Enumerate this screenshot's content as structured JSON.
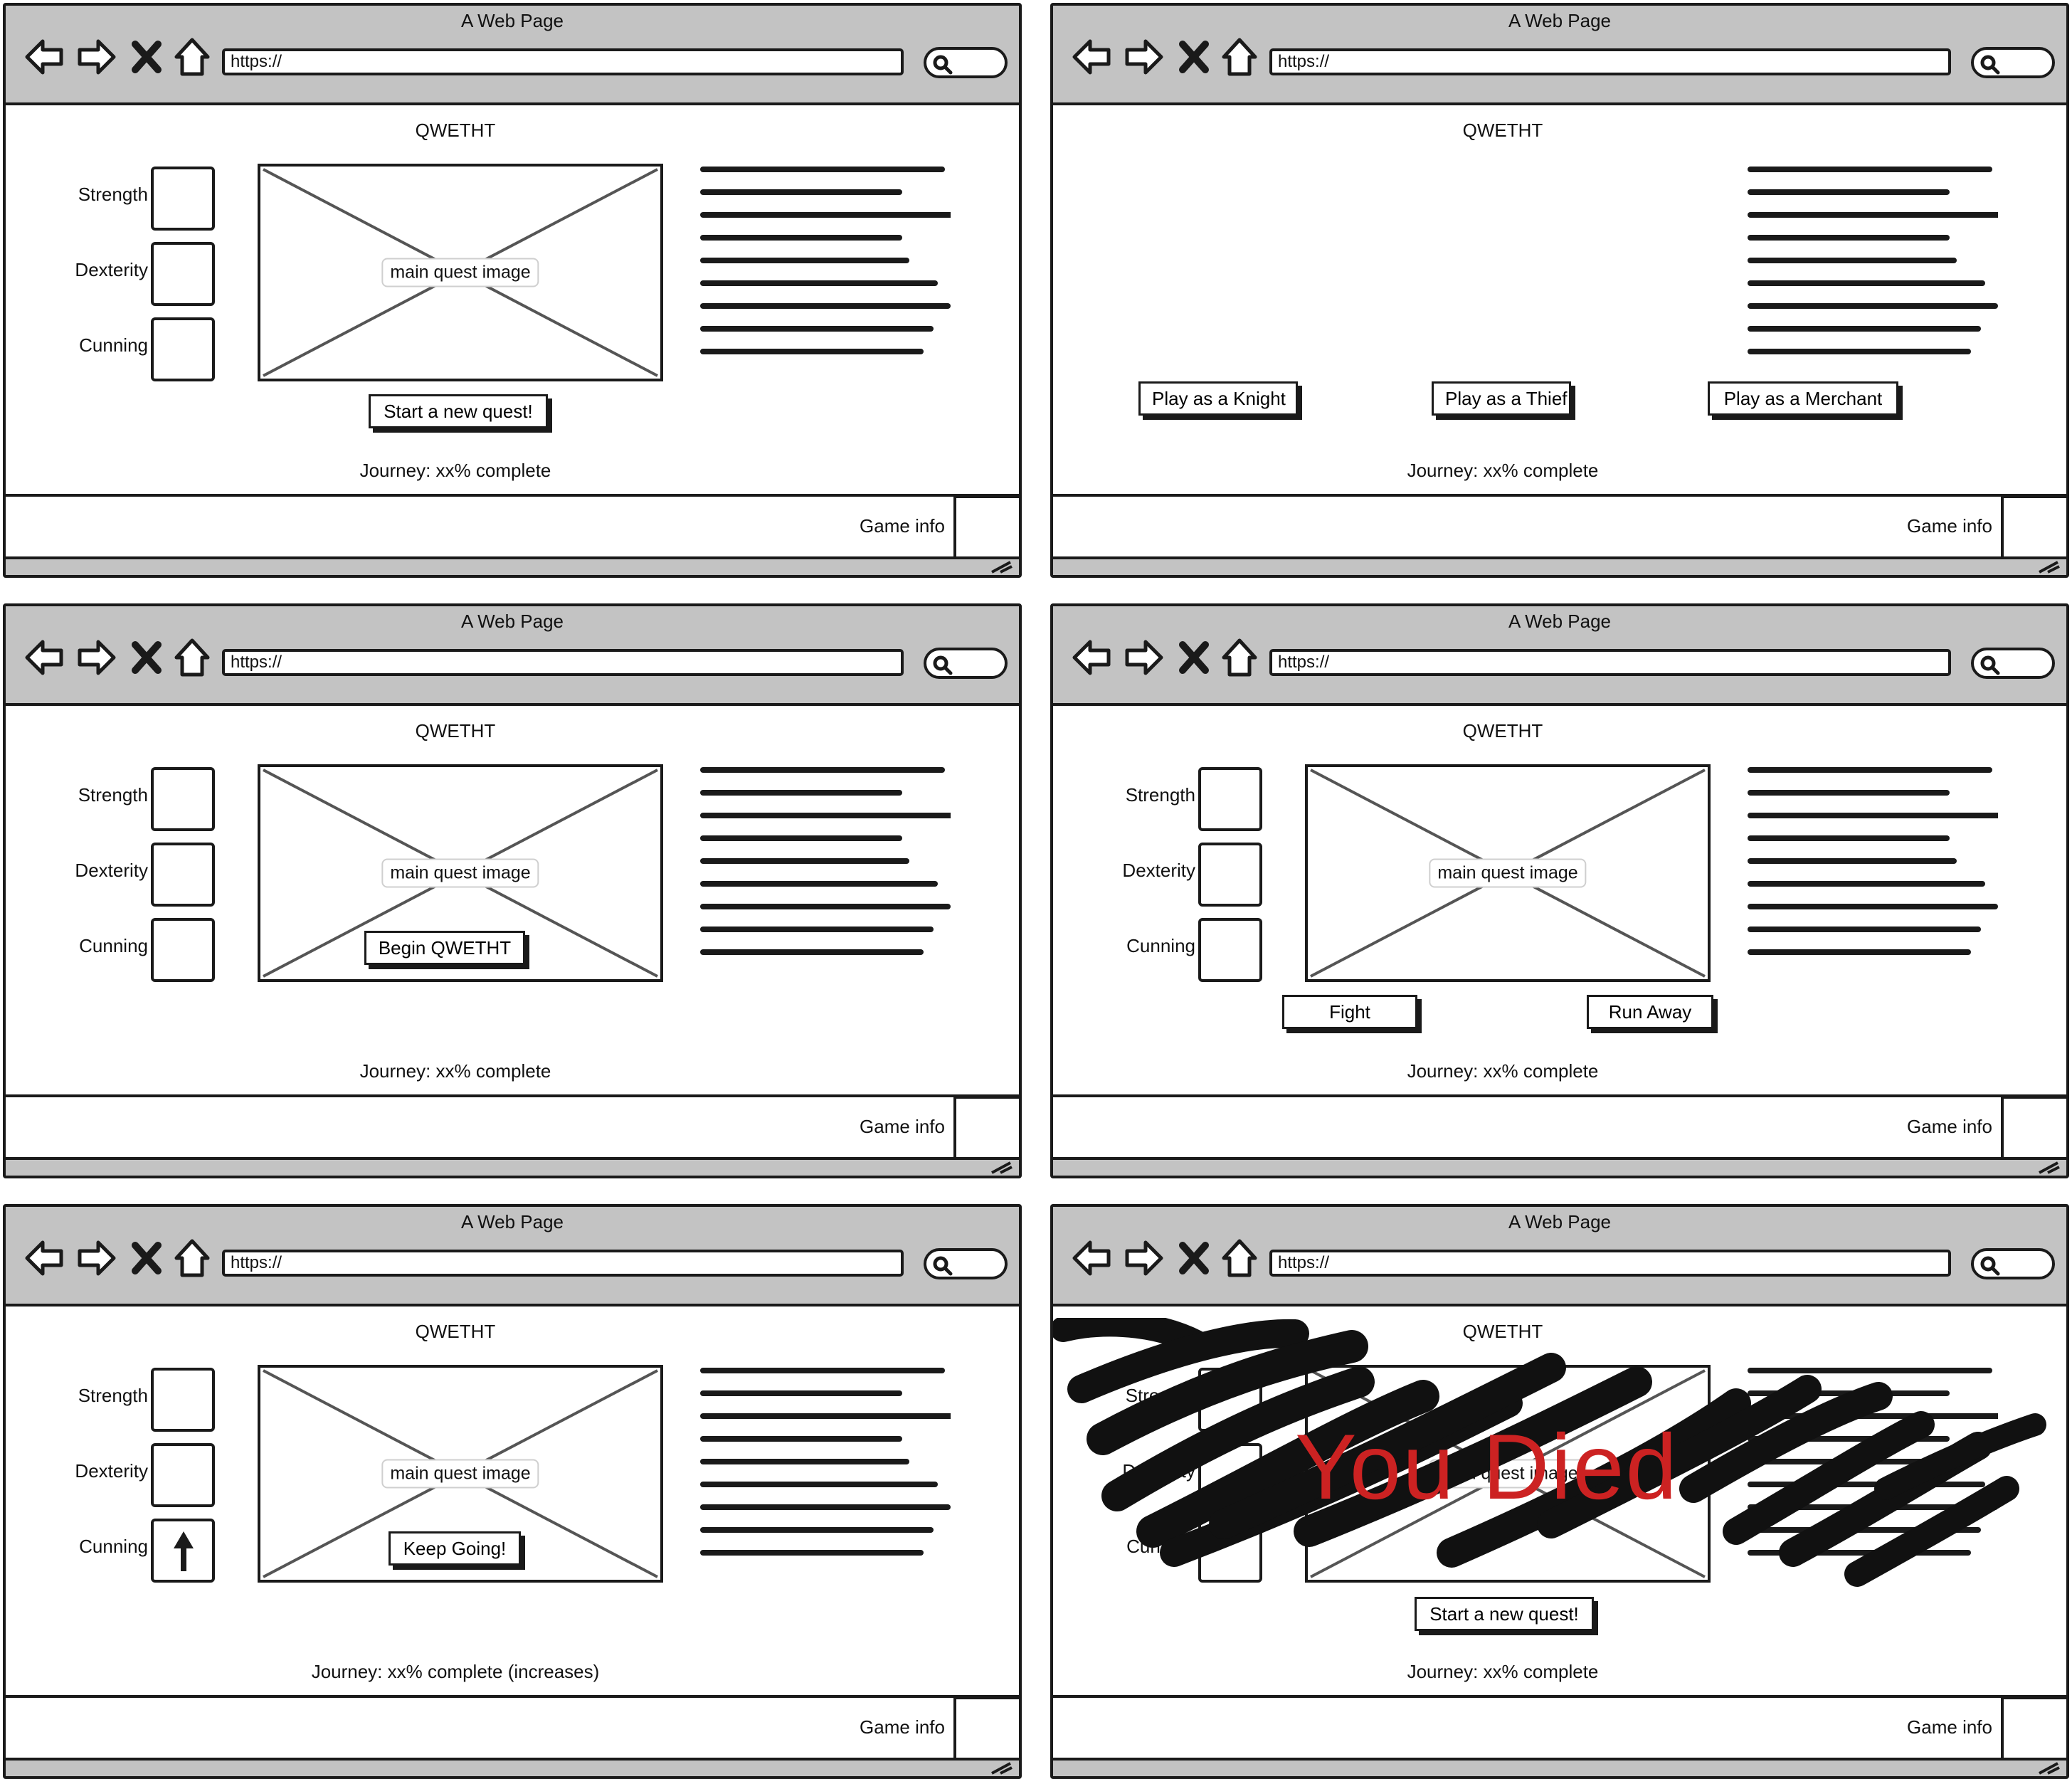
{
  "frames": [
    {
      "window_title": "A Web Page",
      "url": "https://",
      "page_title": "QWETHT",
      "stats": [
        {
          "label": "Strength",
          "icon": "none"
        },
        {
          "label": "Dexterity",
          "icon": "none"
        },
        {
          "label": "Cunning",
          "icon": "none"
        }
      ],
      "image_caption": "main quest image",
      "buttons": [
        {
          "label": "Start a new quest!"
        }
      ],
      "journey": "Journey: xx% complete",
      "footer_label": "Game info"
    },
    {
      "window_title": "A Web Page",
      "url": "https://",
      "page_title": "QWETHT",
      "buttons": [
        {
          "label": "Play as a Knight"
        },
        {
          "label": "Play as a Thief"
        },
        {
          "label": "Play as a Merchant"
        }
      ],
      "journey": "Journey: xx% complete",
      "footer_label": "Game info"
    },
    {
      "window_title": "A Web Page",
      "url": "https://",
      "page_title": "QWETHT",
      "stats": [
        {
          "label": "Strength",
          "icon": "none"
        },
        {
          "label": "Dexterity",
          "icon": "none"
        },
        {
          "label": "Cunning",
          "icon": "none"
        }
      ],
      "image_caption": "main quest image",
      "buttons": [
        {
          "label": "Begin QWETHT"
        }
      ],
      "journey": "Journey: xx% complete",
      "footer_label": "Game info"
    },
    {
      "window_title": "A Web Page",
      "url": "https://",
      "page_title": "QWETHT",
      "stats": [
        {
          "label": "Strength",
          "icon": "none"
        },
        {
          "label": "Dexterity",
          "icon": "none"
        },
        {
          "label": "Cunning",
          "icon": "none"
        }
      ],
      "image_caption": "main quest image",
      "buttons": [
        {
          "label": "Fight"
        },
        {
          "label": "Run Away"
        }
      ],
      "journey": "Journey: xx% complete",
      "footer_label": "Game info"
    },
    {
      "window_title": "A Web Page",
      "url": "https://",
      "page_title": "QWETHT",
      "stats": [
        {
          "label": "Strength",
          "icon": "none"
        },
        {
          "label": "Dexterity",
          "icon": "none"
        },
        {
          "label": "Cunning",
          "icon": "arrow-up-icon"
        }
      ],
      "image_caption": "main quest image",
      "buttons": [
        {
          "label": "Keep Going!"
        }
      ],
      "journey": "Journey: xx% complete (increases)",
      "footer_label": "Game info"
    },
    {
      "window_title": "A Web Page",
      "url": "https://",
      "page_title": "QWETHT",
      "stats": [
        {
          "label": "Strength",
          "icon": "none"
        },
        {
          "label": "Dexterity",
          "icon": "none"
        },
        {
          "label": "Cunning",
          "icon": "none"
        }
      ],
      "image_caption": "main quest image",
      "buttons": [
        {
          "label": "Start a new quest!"
        }
      ],
      "death_message": "You Died",
      "journey": "Journey: xx% complete",
      "footer_label": "Game info"
    }
  ],
  "colors": {
    "chrome": "#c3c3c3",
    "ink": "#1a1a1a",
    "death_text": "#cc2222"
  },
  "icons": [
    "back-arrow-icon",
    "forward-arrow-icon",
    "close-x-icon",
    "home-icon",
    "search-icon",
    "resize-grip-icon",
    "arrow-up-icon"
  ]
}
